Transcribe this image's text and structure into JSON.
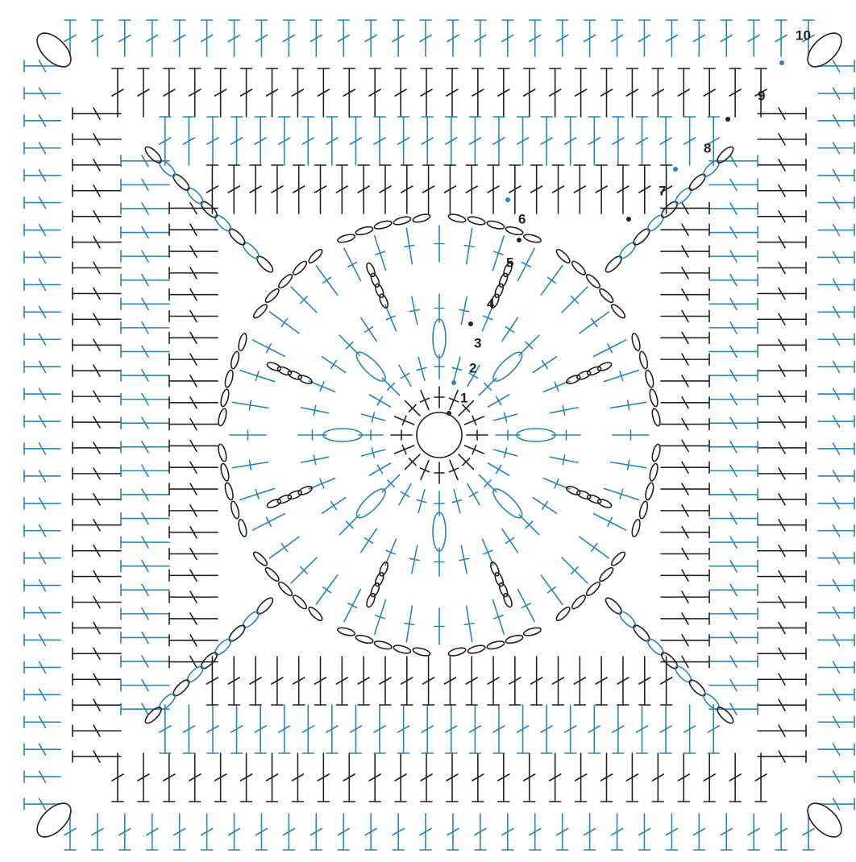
{
  "round_labels": [
    "1",
    "2",
    "3",
    "4",
    "5",
    "6",
    "7",
    "8",
    "9",
    "10"
  ]
}
